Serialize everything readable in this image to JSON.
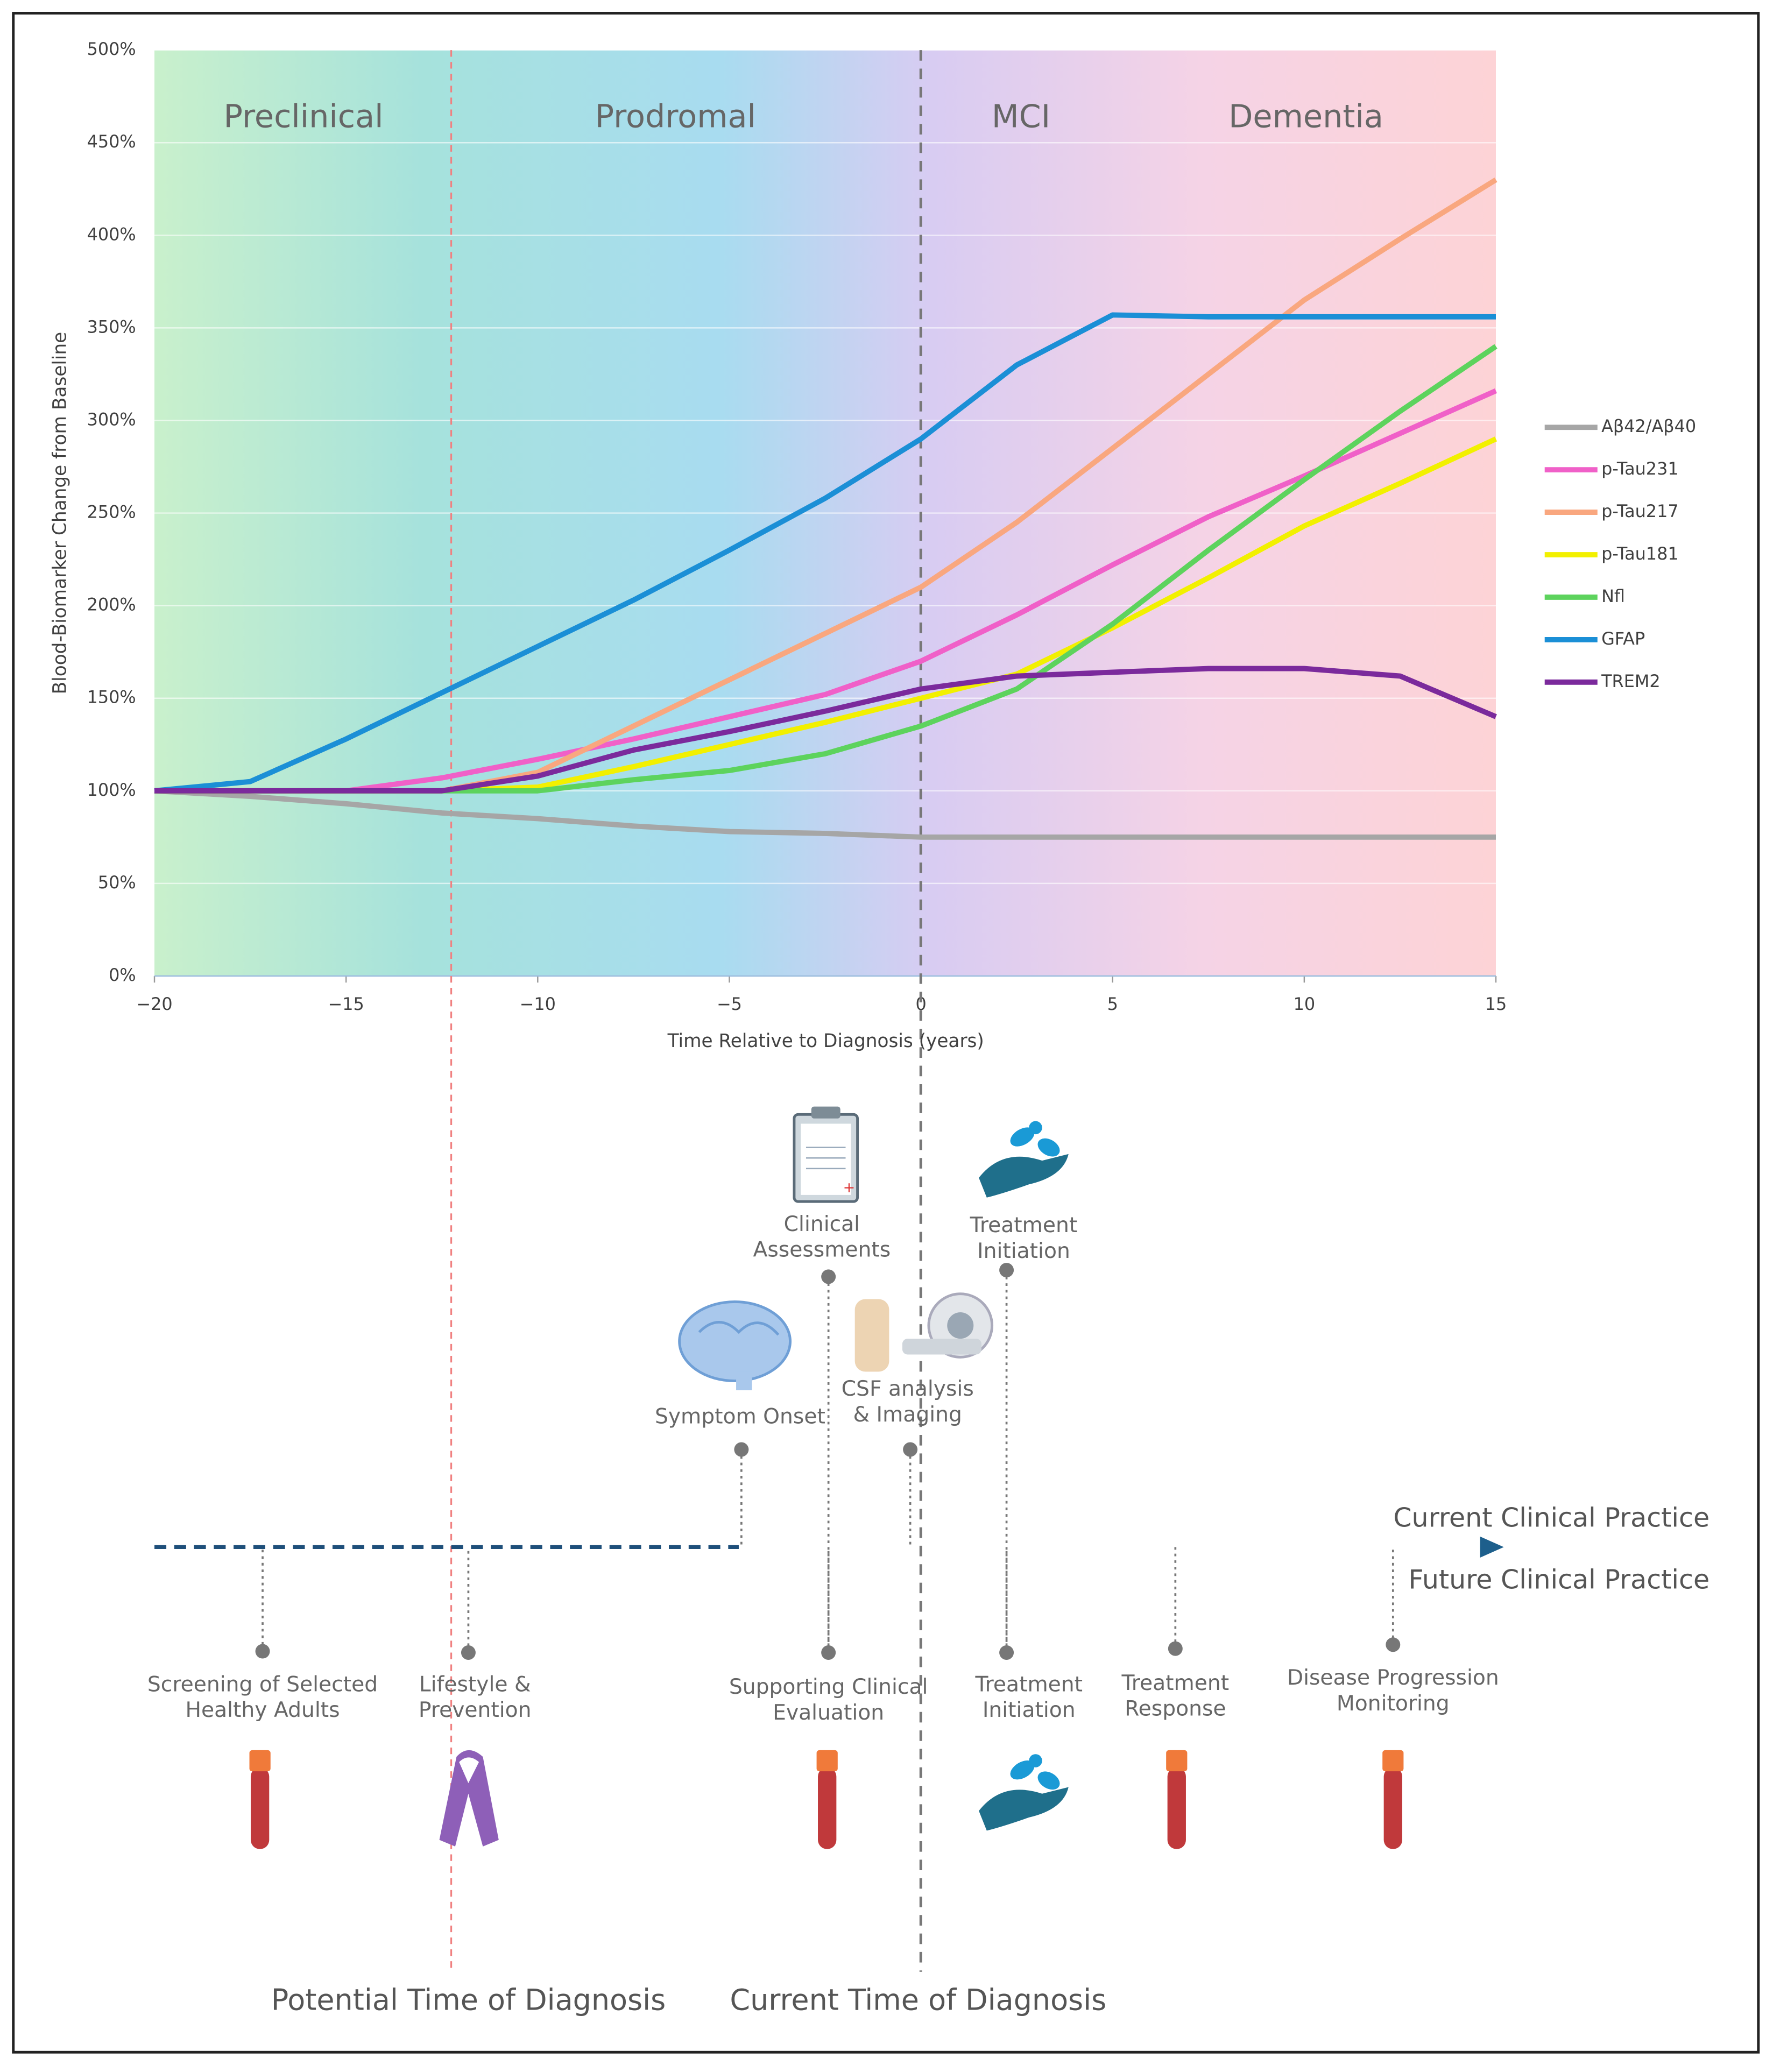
{
  "chart_data": {
    "type": "line",
    "y_label": "Blood-Biomarker Change from Baseline",
    "x_label": "Time Relative to Diagnosis (years)",
    "phases": [
      "Preclinical",
      "Prodromal",
      "MCI",
      "Dementia"
    ],
    "x": [
      -20,
      -17.5,
      -15,
      -12.5,
      -10,
      -7.5,
      -5,
      -2.5,
      0,
      2.5,
      5,
      7.5,
      10,
      12.5,
      15
    ],
    "xlim": [
      -20,
      15
    ],
    "ylim": [
      0,
      500
    ],
    "xticks": [
      {
        "value": -20,
        "label": "−20"
      },
      {
        "value": -15,
        "label": "−15"
      },
      {
        "value": -10,
        "label": "−10"
      },
      {
        "value": -5,
        "label": "−5"
      },
      0,
      5,
      10,
      15
    ],
    "yticks": [
      {
        "value": 0,
        "label": "0%"
      },
      {
        "value": 50,
        "label": "50%"
      },
      {
        "value": 100,
        "label": "100%"
      },
      {
        "value": 150,
        "label": "150%"
      },
      {
        "value": 200,
        "label": "200%"
      },
      {
        "value": 250,
        "label": "250%"
      },
      {
        "value": 300,
        "label": "300%"
      },
      {
        "value": 350,
        "label": "350%"
      },
      {
        "value": 400,
        "label": "400%"
      },
      {
        "value": 450,
        "label": "450%"
      },
      {
        "value": 500,
        "label": "500%"
      }
    ],
    "grid": true,
    "legend": "right",
    "series": [
      {
        "name": "Aβ42/Aβ40",
        "color": "#a6a6a6",
        "values": [
          100,
          97,
          93,
          88,
          85,
          81,
          78,
          77,
          75,
          75,
          75,
          75,
          75,
          75,
          75
        ]
      },
      {
        "name": "p-Tau231",
        "color": "#f060c8",
        "values": [
          100,
          100,
          100,
          107,
          117,
          128,
          140,
          152,
          170,
          195,
          222,
          248,
          270,
          293,
          316
        ]
      },
      {
        "name": "p-Tau217",
        "color": "#f9a77f",
        "values": [
          100,
          100,
          100,
          100,
          110,
          135,
          160,
          185,
          210,
          245,
          285,
          325,
          365,
          398,
          430
        ]
      },
      {
        "name": "p-Tau181",
        "color": "#f2f000",
        "values": [
          100,
          100,
          100,
          100,
          102,
          113,
          125,
          137,
          150,
          163,
          188,
          215,
          243,
          266,
          290
        ]
      },
      {
        "name": "Nfl",
        "color": "#5dd35d",
        "values": [
          100,
          100,
          100,
          100,
          100,
          106,
          111,
          120,
          135,
          155,
          190,
          230,
          268,
          305,
          340
        ]
      },
      {
        "name": "GFAP",
        "color": "#1b8fd6",
        "values": [
          100,
          105,
          128,
          153,
          178,
          203,
          230,
          258,
          290,
          330,
          357,
          356,
          356,
          356,
          356
        ]
      },
      {
        "name": "TREM2",
        "color": "#7b2a9c",
        "values": [
          100,
          100,
          100,
          100,
          108,
          122,
          132,
          143,
          155,
          162,
          164,
          166,
          166,
          162,
          140
        ]
      }
    ]
  },
  "timeline": {
    "current_label": "Current Clinical Practice",
    "future_label": "Future Clinical Practice",
    "current_events": [
      {
        "label": [
          "Clinical",
          "Assessments"
        ]
      },
      {
        "label": [
          "Treatment",
          "Initiation"
        ]
      },
      {
        "label": [
          "Symptom Onset"
        ]
      },
      {
        "label": [
          "CSF analysis",
          "& Imaging"
        ]
      }
    ],
    "future_events": [
      {
        "label": [
          "Screening of Selected",
          "Healthy Adults"
        ]
      },
      {
        "label": [
          "Lifestyle &",
          "Prevention"
        ]
      },
      {
        "label": [
          "Supporting Clinical",
          "Evaluation"
        ]
      },
      {
        "label": [
          "Treatment",
          "Initiation"
        ]
      },
      {
        "label": [
          "Treatment",
          "Response"
        ]
      },
      {
        "label": [
          "Disease Progression",
          "Monitoring"
        ]
      }
    ],
    "diagnosis": [
      "Potential Time of Diagnosis",
      "Current Time of Diagnosis"
    ]
  }
}
